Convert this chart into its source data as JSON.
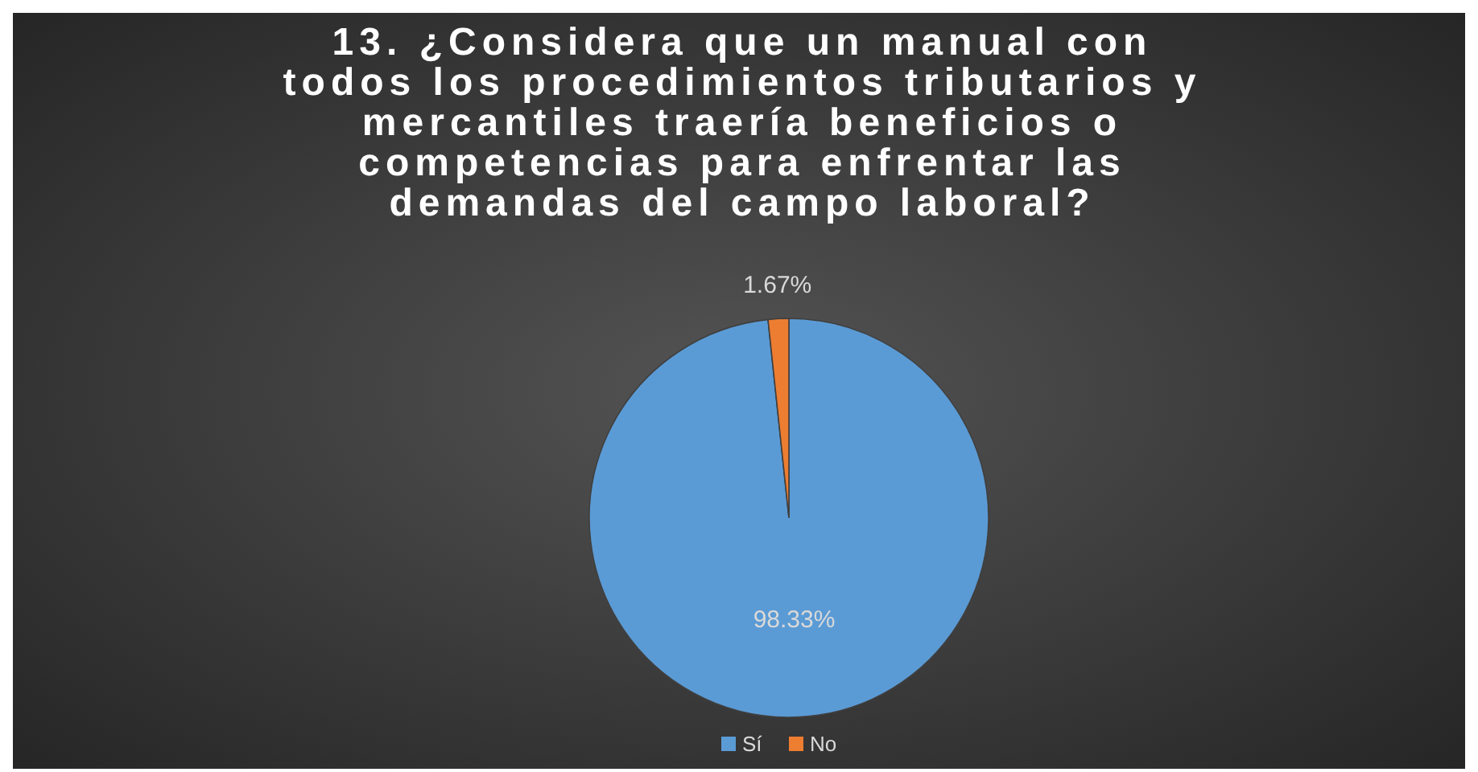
{
  "chart_data": {
    "type": "pie",
    "title": "13. ¿Considera que un manual con\ntodos los procedimientos tributarios y\nmercantiles traería beneficios o\ncompetencias para enfrentar las\ndemandas del campo laboral?",
    "categories": [
      "Sí",
      "No"
    ],
    "values": [
      98.33,
      1.67
    ],
    "colors": [
      "#5b9bd5",
      "#ed7d31"
    ],
    "value_labels": [
      "98.33%",
      "1.67%"
    ],
    "legend": "bottom"
  }
}
